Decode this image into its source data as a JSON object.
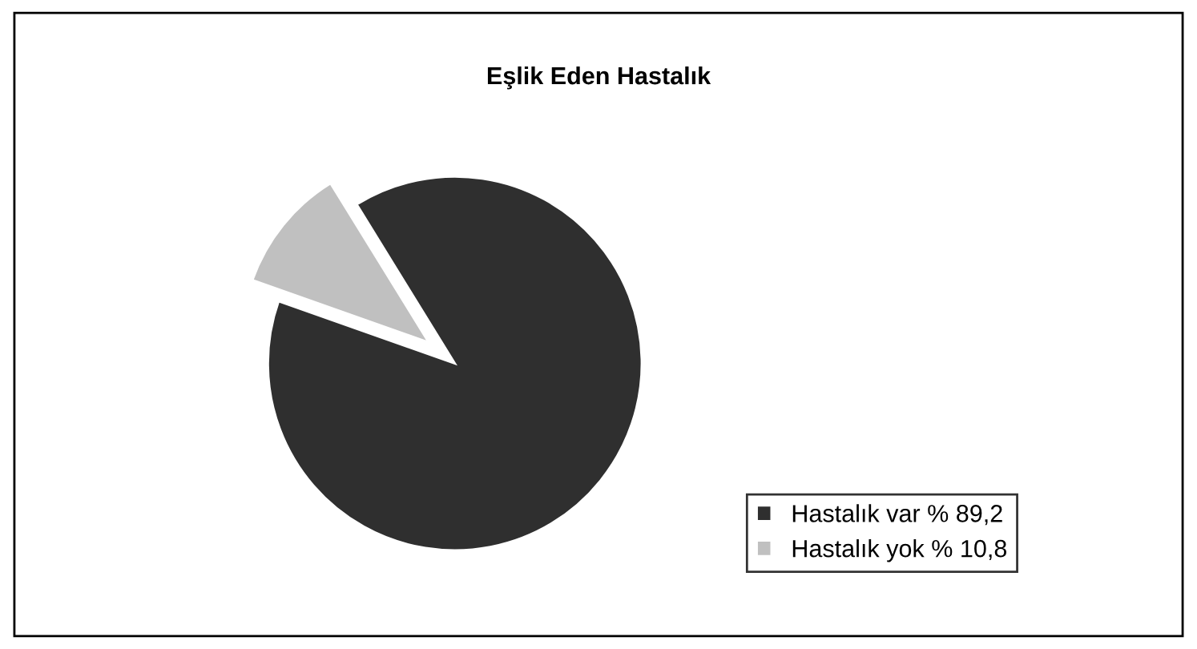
{
  "chart_data": {
    "type": "pie",
    "title": "Eşlik Eden Hastalık",
    "categories": [
      "Hastalık var % 89,2",
      "Hastalık yok % 10,8"
    ],
    "values": [
      89.2,
      10.8
    ],
    "colors": [
      "#2f2f2f",
      "#c0c0c0"
    ],
    "legend": "bottom right"
  }
}
